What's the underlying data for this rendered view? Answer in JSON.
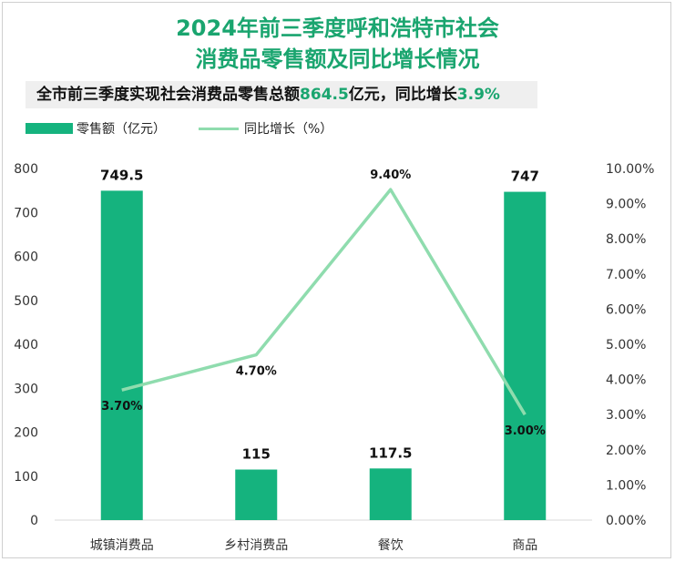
{
  "title_line1": "2024年前三季度呼和浩特市社会",
  "title_line2": "消费品零售额及同比增长情况",
  "subtitle": {
    "prefix": "全市前三季度实现社会消费品零售总额",
    "total": "864.5",
    "mid": "亿元，同比增长",
    "growth": "3.9%"
  },
  "colors": {
    "bar": "#15b37e",
    "line": "#8fdcae",
    "title": "#1aa56f"
  },
  "chart_data": {
    "type": "bar+line",
    "categories": [
      "城镇消费品",
      "乡村消费品",
      "餐饮",
      "商品"
    ],
    "series": [
      {
        "name": "零售额（亿元）",
        "type": "bar",
        "axis": "left",
        "values": [
          749.5,
          115,
          117.5,
          747
        ],
        "labels": [
          "749.5",
          "115",
          "117.5",
          "747"
        ]
      },
      {
        "name": "同比增长（%）",
        "type": "line",
        "axis": "right",
        "values": [
          3.7,
          4.7,
          9.4,
          3.0
        ],
        "labels": [
          "3.70%",
          "4.70%",
          "9.40%",
          "3.00%"
        ]
      }
    ],
    "left_axis": {
      "range": [
        0,
        800
      ],
      "ticks": [
        "0",
        "100",
        "200",
        "300",
        "400",
        "500",
        "600",
        "700",
        "800"
      ]
    },
    "right_axis": {
      "range": [
        0,
        10
      ],
      "ticks": [
        "0.00%",
        "1.00%",
        "2.00%",
        "3.00%",
        "4.00%",
        "5.00%",
        "6.00%",
        "7.00%",
        "8.00%",
        "9.00%",
        "10.00%"
      ]
    },
    "legend_position": "top-left",
    "grid": false
  }
}
